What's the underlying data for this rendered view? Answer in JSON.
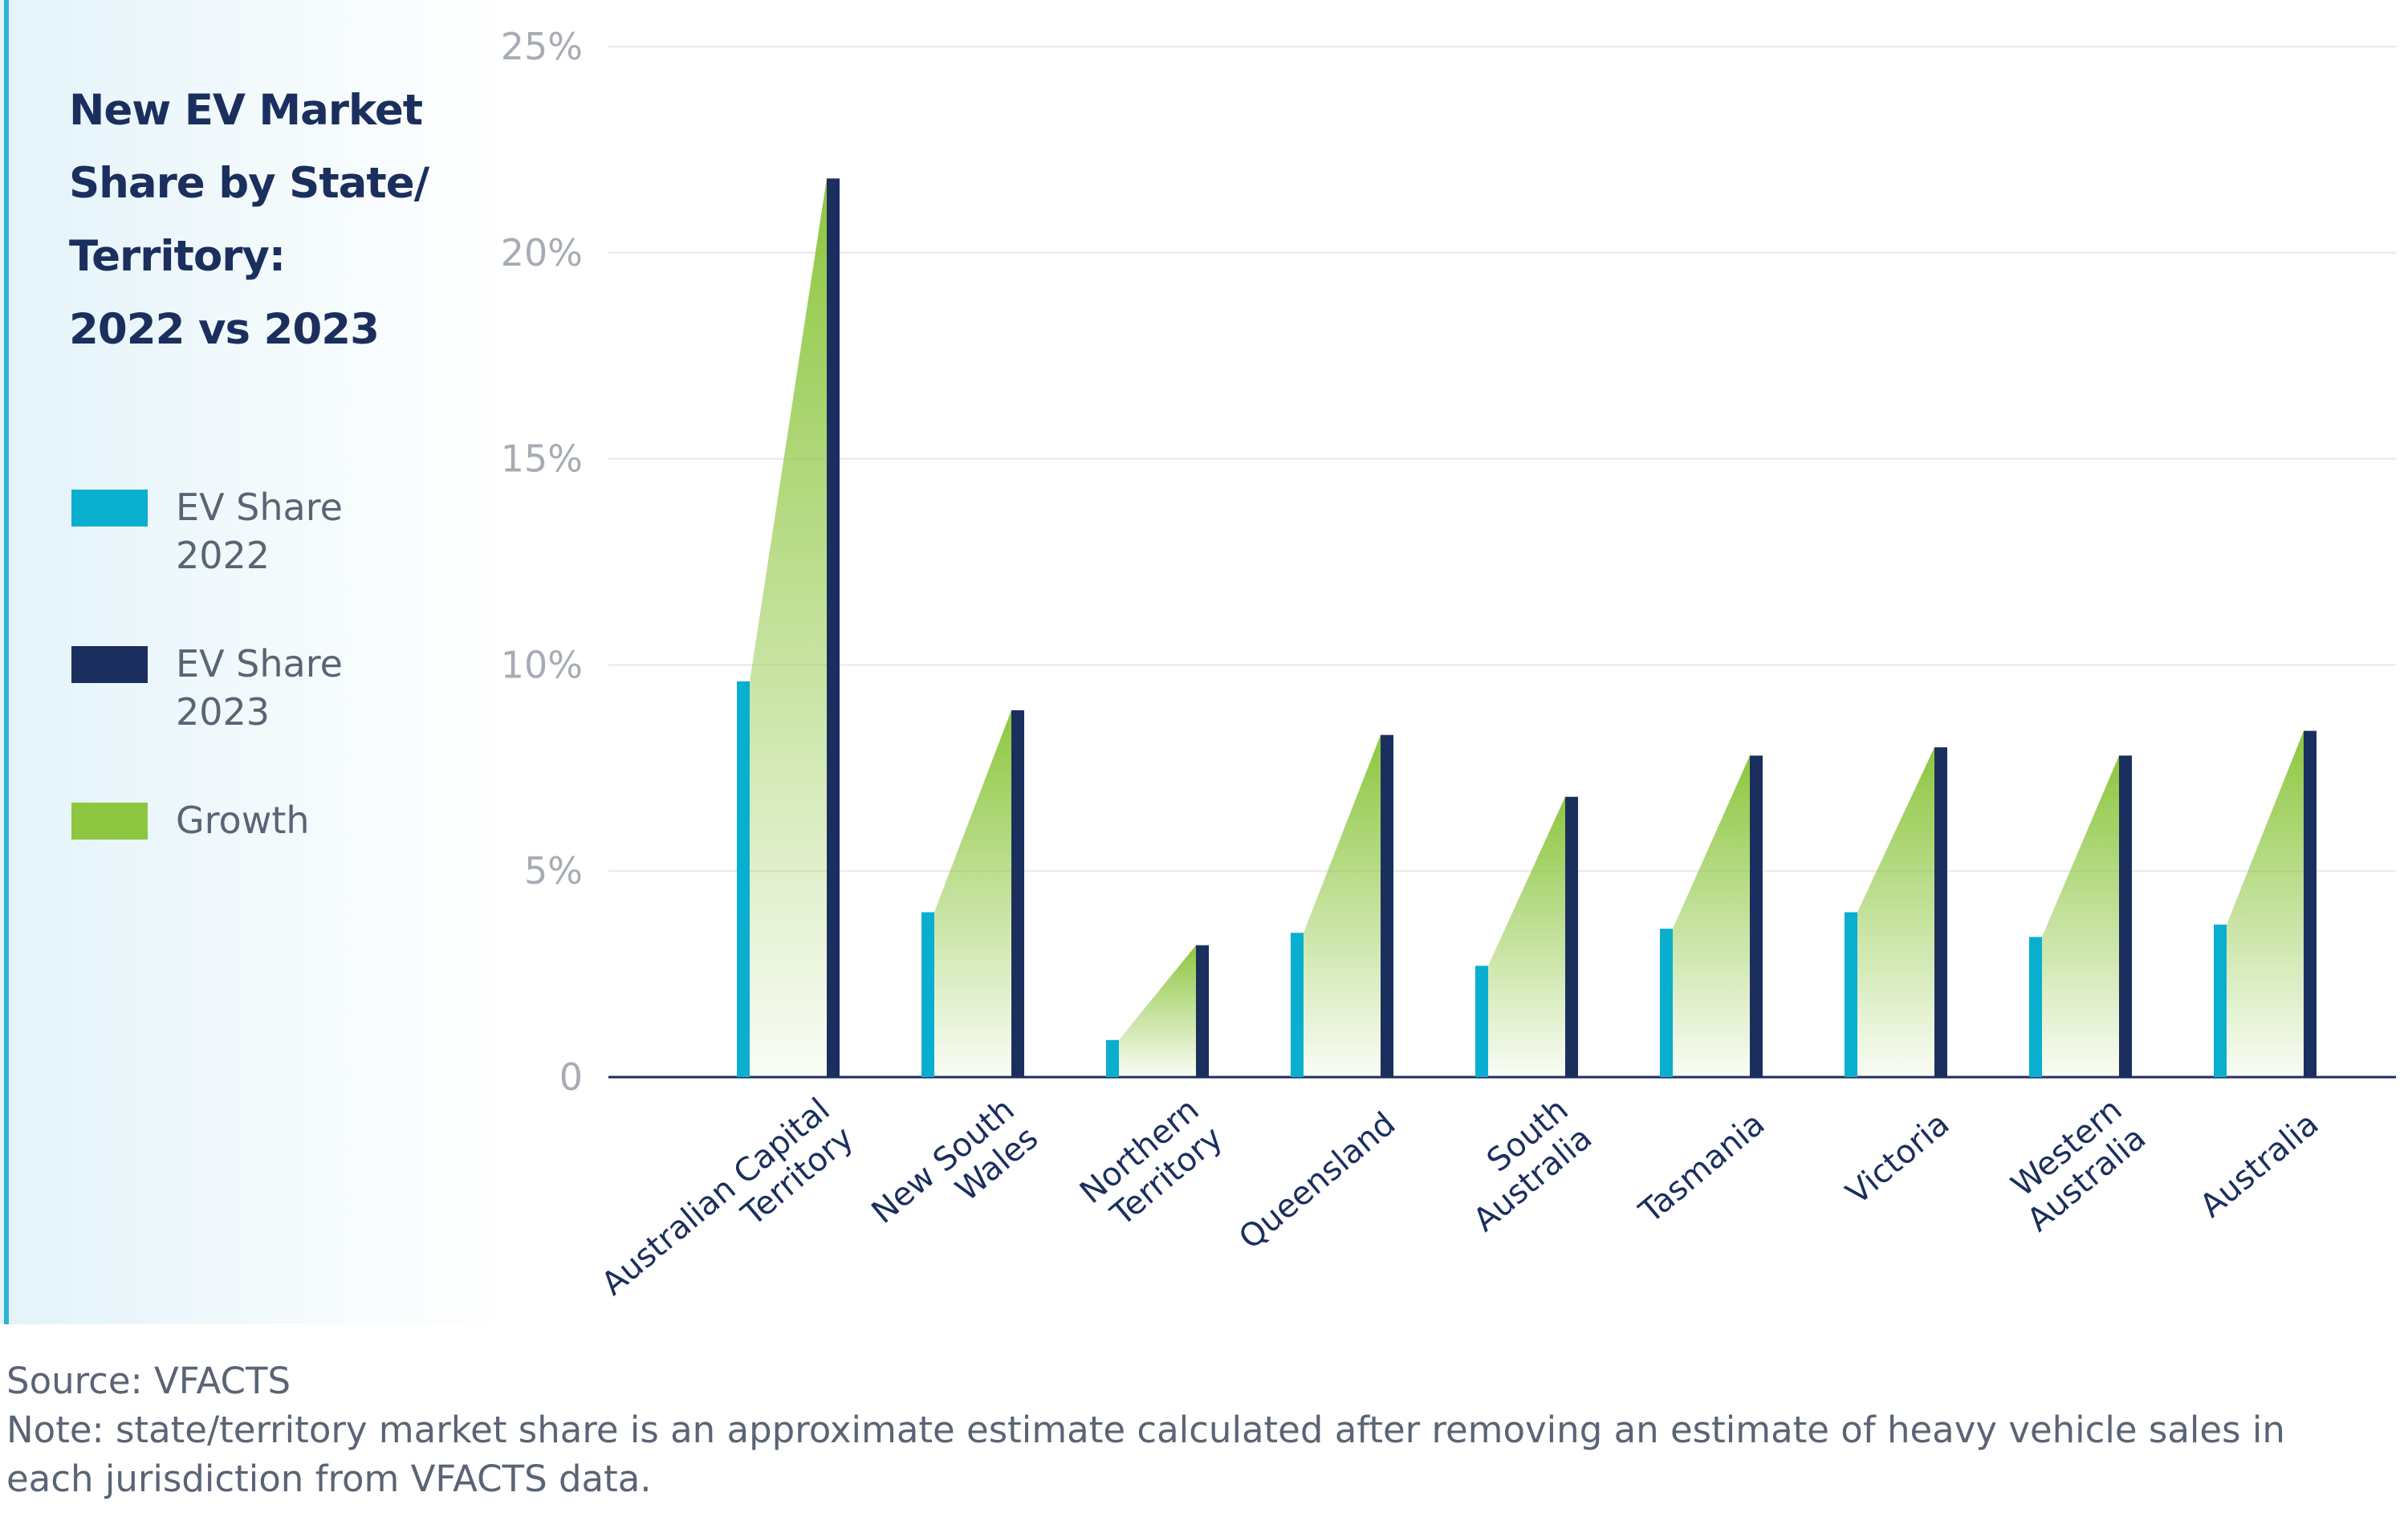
{
  "title_lines": [
    "New EV Market",
    "Share by State/",
    "Territory:",
    "2022 vs  2023"
  ],
  "legend": [
    {
      "label_lines": [
        "EV Share",
        "2022"
      ],
      "color": "#0aaecf"
    },
    {
      "label_lines": [
        "EV Share",
        "2023"
      ],
      "color": "#1b2f5e"
    },
    {
      "label_lines": [
        "Growth"
      ],
      "color": "#8dc63f"
    }
  ],
  "source": "Source: VFACTS",
  "note": "Note: state/territory market share is an approximate estimate calculated after removing an estimate of heavy vehicle sales in each jurisdiction from VFACTS data.",
  "chart_data": {
    "type": "bar",
    "title": "New EV Market Share by State/ Territory: 2022 vs  2023",
    "xlabel": "",
    "ylabel": "",
    "ylim": [
      0,
      25
    ],
    "yticks": [
      0,
      5,
      10,
      15,
      20,
      25
    ],
    "ytick_labels": [
      "0",
      "5%",
      "10%",
      "15%",
      "20%",
      "25%"
    ],
    "grid": true,
    "legend_position": "left",
    "categories": [
      "Australian Capital Territory",
      "New South Wales",
      "Northern Territory",
      "Queensland",
      "South Australia",
      "Tasmania",
      "Victoria",
      "Western Australia",
      "Australia"
    ],
    "category_label_lines": [
      [
        "Australian Capital",
        "Territory"
      ],
      [
        "New South",
        "Wales"
      ],
      [
        "Northern",
        "Territory"
      ],
      [
        "Queensland"
      ],
      [
        "South",
        "Australia"
      ],
      [
        "Tasmania"
      ],
      [
        "Victoria"
      ],
      [
        "Western",
        "Australia"
      ],
      [
        "Australia"
      ]
    ],
    "series": [
      {
        "name": "EV Share 2022",
        "color": "#0aaecf",
        "values": [
          9.6,
          4.0,
          0.9,
          3.5,
          2.7,
          3.6,
          4.0,
          3.4,
          3.7
        ]
      },
      {
        "name": "EV Share 2023",
        "color": "#1b2f5e",
        "values": [
          21.8,
          8.9,
          3.2,
          8.3,
          6.8,
          7.8,
          8.0,
          7.8,
          8.4
        ]
      }
    ],
    "growth_label": "Growth",
    "growth_color": "#8dc63f"
  }
}
